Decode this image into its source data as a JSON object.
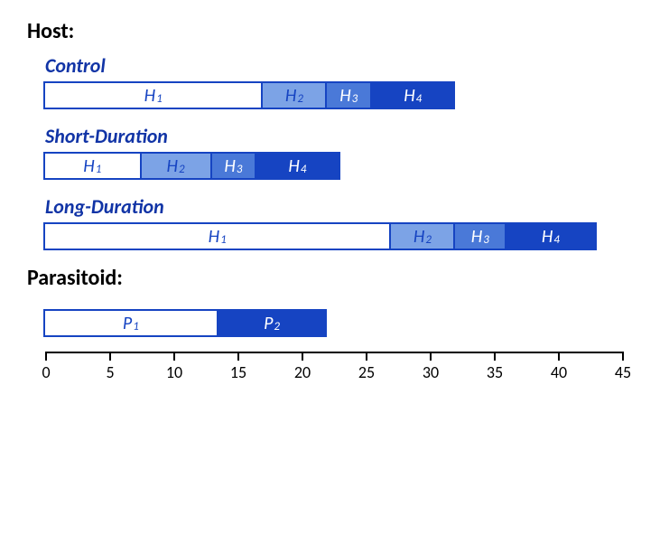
{
  "pxPerUnit": 14.2,
  "axis": {
    "min": 0,
    "max": 45,
    "tickStep": 5
  },
  "colors": {
    "white": "#ffffff",
    "light": "#7ca3e6",
    "mid": "#4a79d8",
    "dark": "#1644c2",
    "border": "#1644c2",
    "labelOnDark": "#ffffff",
    "labelOnLight": "#1644c2"
  },
  "headers": {
    "host": "Host:",
    "parasitoid": "Parasitoid:"
  },
  "groups": [
    {
      "key": "control",
      "label": "Control",
      "segments": [
        {
          "labelVar": "H",
          "labelSub": "1",
          "start": 0,
          "end": 17,
          "fill": "white",
          "text": "labelOnLight"
        },
        {
          "labelVar": "H",
          "labelSub": "2",
          "start": 17,
          "end": 22,
          "fill": "light",
          "text": "labelOnLight"
        },
        {
          "labelVar": "H",
          "labelSub": "3",
          "start": 22,
          "end": 25.5,
          "fill": "mid",
          "text": "labelOnDark"
        },
        {
          "labelVar": "H",
          "labelSub": "4",
          "start": 25.5,
          "end": 32,
          "fill": "dark",
          "text": "labelOnDark"
        }
      ]
    },
    {
      "key": "short",
      "label": "Short-Duration",
      "segments": [
        {
          "labelVar": "H",
          "labelSub": "1",
          "start": 0,
          "end": 7.5,
          "fill": "white",
          "text": "labelOnLight"
        },
        {
          "labelVar": "H",
          "labelSub": "2",
          "start": 7.5,
          "end": 13,
          "fill": "light",
          "text": "labelOnLight"
        },
        {
          "labelVar": "H",
          "labelSub": "3",
          "start": 13,
          "end": 16.5,
          "fill": "mid",
          "text": "labelOnDark"
        },
        {
          "labelVar": "H",
          "labelSub": "4",
          "start": 16.5,
          "end": 23,
          "fill": "dark",
          "text": "labelOnDark"
        }
      ]
    },
    {
      "key": "long",
      "label": "Long-Duration",
      "segments": [
        {
          "labelVar": "H",
          "labelSub": "1",
          "start": 0,
          "end": 27,
          "fill": "white",
          "text": "labelOnLight"
        },
        {
          "labelVar": "H",
          "labelSub": "2",
          "start": 27,
          "end": 32,
          "fill": "light",
          "text": "labelOnLight"
        },
        {
          "labelVar": "H",
          "labelSub": "3",
          "start": 32,
          "end": 36,
          "fill": "mid",
          "text": "labelOnDark"
        },
        {
          "labelVar": "H",
          "labelSub": "4",
          "start": 36,
          "end": 43,
          "fill": "dark",
          "text": "labelOnDark"
        }
      ]
    }
  ],
  "parasitoid": {
    "segments": [
      {
        "labelVar": "P",
        "labelSub": "1",
        "start": 0,
        "end": 13.5,
        "fill": "white",
        "text": "labelOnLight"
      },
      {
        "labelVar": "P",
        "labelSub": "2",
        "start": 13.5,
        "end": 22,
        "fill": "dark",
        "text": "labelOnDark"
      }
    ]
  }
}
